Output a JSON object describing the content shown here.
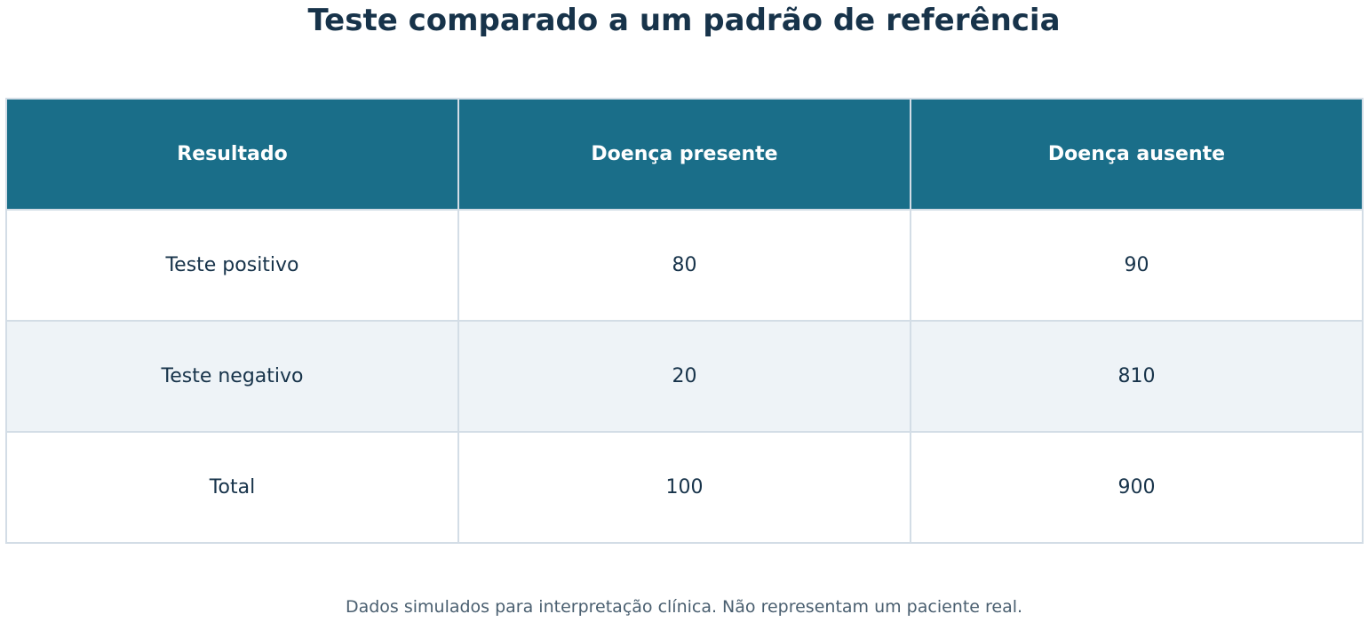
{
  "title": "Teste comparado a um padrão de referência",
  "table": {
    "header": [
      "Resultado",
      "Doença presente",
      "Doença ausente"
    ],
    "rows": [
      [
        "Teste positivo",
        80,
        90
      ],
      [
        "Teste negativo",
        20,
        810
      ],
      [
        "Total",
        100,
        900
      ]
    ]
  },
  "footnote": "Dados simulados para interpretação clínica. Não representam um paciente real."
}
